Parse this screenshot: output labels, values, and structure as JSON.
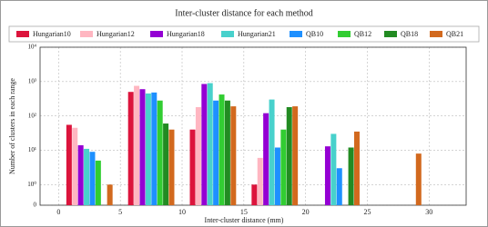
{
  "chart_data": {
    "type": "bar",
    "title": "Inter-cluster distance for each method",
    "x_label": "Inter-cluster distance (mm)",
    "y_label": "Number of clusters in each range",
    "x": [
      2.5,
      7.5,
      12.5,
      17.5,
      22.5,
      27.5
    ],
    "series": [
      {
        "name": "Hungarian10",
        "color": "#dc143c",
        "values": [
          55,
          500,
          40,
          1,
          0,
          0
        ]
      },
      {
        "name": "Hungarian12",
        "color": "#ffb6c1",
        "values": [
          45,
          750,
          180,
          6,
          0,
          0
        ]
      },
      {
        "name": "Hungarian18",
        "color": "#9400d3",
        "values": [
          14,
          600,
          850,
          120,
          13,
          0
        ]
      },
      {
        "name": "Hungarian21",
        "color": "#48d1cc",
        "values": [
          11,
          450,
          900,
          300,
          30,
          0
        ]
      },
      {
        "name": "QB10",
        "color": "#1e90ff",
        "values": [
          9,
          480,
          280,
          12,
          3,
          0
        ]
      },
      {
        "name": "QB12",
        "color": "#32cd32",
        "values": [
          5,
          280,
          420,
          40,
          0,
          0
        ]
      },
      {
        "name": "QB18",
        "color": "#228b22",
        "values": [
          0,
          60,
          280,
          180,
          12,
          0
        ]
      },
      {
        "name": "QB21",
        "color": "#d2691e",
        "values": [
          1,
          40,
          190,
          190,
          35,
          8
        ]
      }
    ],
    "xlim": [
      -1.5,
      33
    ],
    "xticks": [
      0,
      5,
      10,
      15,
      20,
      25,
      30
    ],
    "ylim": [
      0,
      10000
    ],
    "yscale": "symlog",
    "yticks": [
      0,
      {
        "value": 1,
        "label": "10⁰"
      },
      {
        "value": 10,
        "label": "10¹"
      },
      {
        "value": 100,
        "label": "10²"
      },
      {
        "value": 1000,
        "label": "10³"
      },
      {
        "value": 10000,
        "label": "10⁴"
      }
    ],
    "grid": true
  }
}
